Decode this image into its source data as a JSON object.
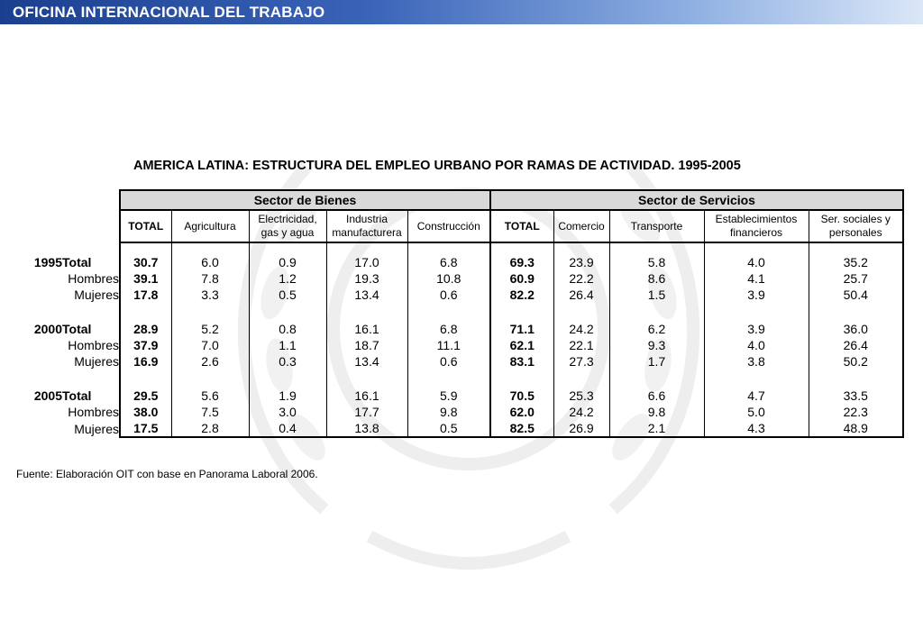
{
  "banner": {
    "title": "OFICINA INTERNACIONAL DEL TRABAJO"
  },
  "title": "AMERICA LATINA: ESTRUCTURA DEL EMPLEO URBANO POR RAMAS DE ACTIVIDAD. 1995-2005",
  "sectors": {
    "goods": "Sector de Bienes",
    "services": "Sector de Servicios"
  },
  "columns": {
    "total_goods": "TOTAL",
    "agriculture": "Agricultura",
    "electricity": "Electricidad, gas y agua",
    "industry": "Industria manufacturera",
    "construction": "Construcción",
    "total_services": "TOTAL",
    "commerce": "Comercio",
    "transport": "Transporte",
    "financial": "Establecimientos financieros",
    "social": "Ser. sociales y personales"
  },
  "rows": [
    {
      "year": "1995",
      "label": "Total",
      "v": [
        "30.7",
        "6.0",
        "0.9",
        "17.0",
        "6.8",
        "69.3",
        "23.9",
        "5.8",
        "4.0",
        "35.2"
      ]
    },
    {
      "year": "",
      "label": "Hombres",
      "v": [
        "39.1",
        "7.8",
        "1.2",
        "19.3",
        "10.8",
        "60.9",
        "22.2",
        "8.6",
        "4.1",
        "25.7"
      ]
    },
    {
      "year": "",
      "label": "Mujeres",
      "v": [
        "17.8",
        "3.3",
        "0.5",
        "13.4",
        "0.6",
        "82.2",
        "26.4",
        "1.5",
        "3.9",
        "50.4"
      ]
    },
    {
      "year": "2000",
      "label": "Total",
      "v": [
        "28.9",
        "5.2",
        "0.8",
        "16.1",
        "6.8",
        "71.1",
        "24.2",
        "6.2",
        "3.9",
        "36.0"
      ]
    },
    {
      "year": "",
      "label": "Hombres",
      "v": [
        "37.9",
        "7.0",
        "1.1",
        "18.7",
        "11.1",
        "62.1",
        "22.1",
        "9.3",
        "4.0",
        "26.4"
      ]
    },
    {
      "year": "",
      "label": "Mujeres",
      "v": [
        "16.9",
        "2.6",
        "0.3",
        "13.4",
        "0.6",
        "83.1",
        "27.3",
        "1.7",
        "3.8",
        "50.2"
      ]
    },
    {
      "year": "2005",
      "label": "Total",
      "v": [
        "29.5",
        "5.6",
        "1.9",
        "16.1",
        "5.9",
        "70.5",
        "25.3",
        "6.6",
        "4.7",
        "33.5"
      ]
    },
    {
      "year": "",
      "label": "Hombres",
      "v": [
        "38.0",
        "7.5",
        "3.0",
        "17.7",
        "9.8",
        "62.0",
        "24.2",
        "9.8",
        "5.0",
        "22.3"
      ]
    },
    {
      "year": "",
      "label": "Mujeres",
      "v": [
        "17.5",
        "2.8",
        "0.4",
        "13.8",
        "0.5",
        "82.5",
        "26.9",
        "2.1",
        "4.3",
        "48.9"
      ]
    }
  ],
  "source": "Fuente: Elaboración OIT con base en Panorama Laboral 2006."
}
